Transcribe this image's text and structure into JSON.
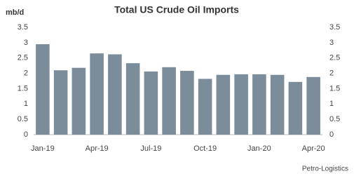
{
  "chart_data": {
    "type": "bar",
    "title": "Total US Crude Oil Imports",
    "y_label": "mb/d",
    "source": "Petro-Logistics",
    "categories": [
      "Jan-19",
      null,
      null,
      "Apr-19",
      null,
      null,
      "Jul-19",
      null,
      null,
      "Oct-19",
      null,
      null,
      "Jan-20",
      null,
      null,
      "Apr-20"
    ],
    "values": [
      2.95,
      2.1,
      2.18,
      2.65,
      2.62,
      2.33,
      2.06,
      2.2,
      2.08,
      1.82,
      1.95,
      1.97,
      1.97,
      1.95,
      1.72,
      1.88
    ],
    "color": "#7b8c9b",
    "ylim": [
      0,
      3.5
    ],
    "yticks": [
      0,
      0.5,
      1,
      1.5,
      2,
      2.5,
      3,
      3.5
    ],
    "y2lim": [
      0,
      3.5
    ],
    "y2ticks": [
      0,
      0.5,
      1,
      1.5,
      2,
      2.5,
      3,
      3.5
    ],
    "grid": false
  }
}
